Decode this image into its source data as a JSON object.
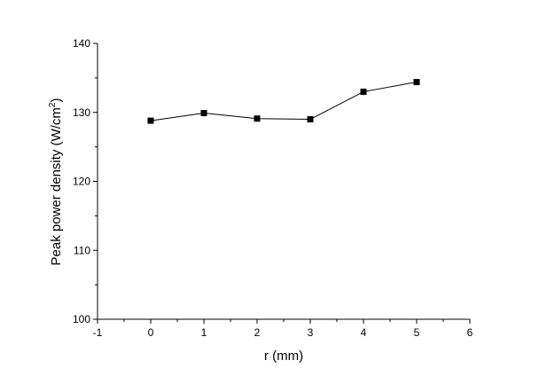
{
  "chart_data": {
    "type": "line",
    "title": "",
    "xlabel": "r (mm)",
    "ylabel_main": "Peak power density (W/cm",
    "ylabel_sup": "2",
    "ylabel_close": ")",
    "xlim": [
      -1,
      6
    ],
    "ylim": [
      100,
      140
    ],
    "x_ticks": [
      -1,
      0,
      1,
      2,
      3,
      4,
      5,
      6
    ],
    "y_ticks": [
      100,
      110,
      120,
      130,
      140
    ],
    "grid": false,
    "legend": "none",
    "series": [
      {
        "x": [
          0,
          1,
          2,
          3,
          4,
          5
        ],
        "y": [
          128.8,
          129.9,
          129.1,
          129.0,
          133.0,
          134.4
        ],
        "marker": "square",
        "color": "#000000"
      }
    ]
  }
}
